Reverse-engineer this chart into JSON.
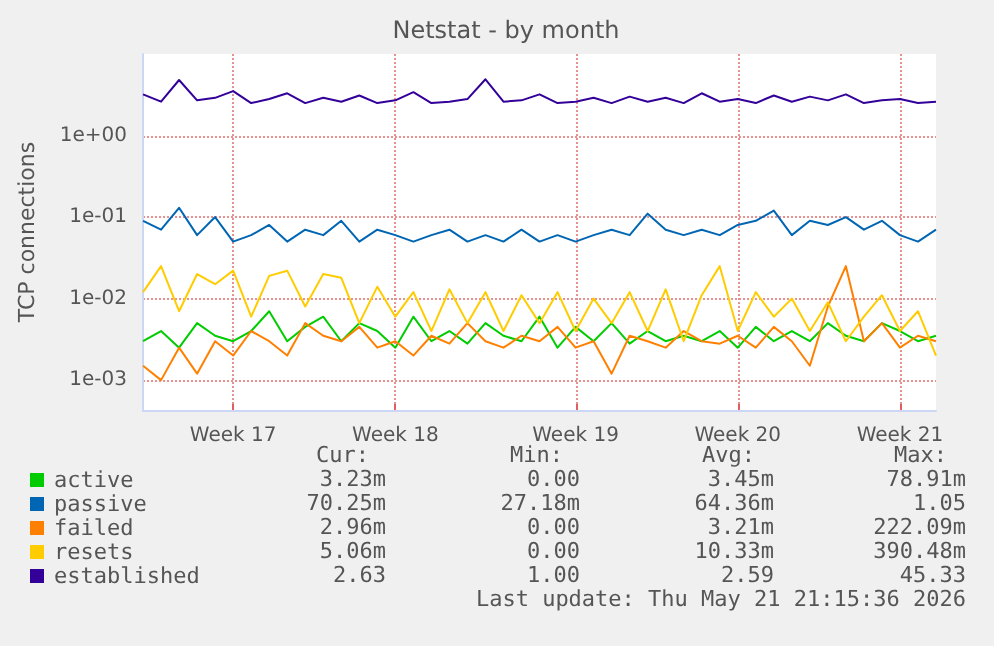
{
  "chart_data": {
    "type": "line",
    "title": "Netstat - by month",
    "ylabel": "TCP connections",
    "log": "y",
    "grid": true,
    "legend": "bottom left",
    "marker": "none",
    "line_style": "solid",
    "categories": [
      null,
      null,
      null,
      null,
      null,
      "Week 17",
      null,
      null,
      null,
      null,
      null,
      null,
      null,
      null,
      "Week 18",
      null,
      null,
      null,
      null,
      null,
      null,
      null,
      null,
      null,
      "Week 19",
      null,
      null,
      null,
      null,
      null,
      null,
      null,
      null,
      "Week 20",
      null,
      null,
      null,
      null,
      null,
      null,
      null,
      null,
      "Week 21",
      null,
      null
    ],
    "ylim": [
      0.00043,
      10
    ],
    "yticks": [
      {
        "value": 0.001,
        "label": "1e-03"
      },
      {
        "value": 0.01,
        "label": "1e-02"
      },
      {
        "value": 0.1,
        "label": "1e-01"
      },
      {
        "value": 1,
        "label": "1e+00"
      }
    ],
    "series": [
      {
        "name": "active",
        "color": "#00cc00",
        "values": [
          0.003,
          0.004,
          0.0025,
          0.005,
          0.0035,
          0.003,
          0.004,
          0.007,
          0.003,
          0.0045,
          0.006,
          0.003,
          0.005,
          0.004,
          0.0025,
          0.006,
          0.003,
          0.004,
          0.0028,
          0.005,
          0.0035,
          0.003,
          0.006,
          0.0025,
          0.0045,
          0.003,
          0.005,
          0.0028,
          0.004,
          0.003,
          0.0035,
          0.003,
          0.004,
          0.0025,
          0.0045,
          0.003,
          0.004,
          0.003,
          0.005,
          0.0035,
          0.003,
          0.005,
          0.004,
          0.003,
          0.0035
        ]
      },
      {
        "name": "passive",
        "color": "#0066b3",
        "values": [
          0.09,
          0.07,
          0.13,
          0.06,
          0.1,
          0.05,
          0.06,
          0.08,
          0.05,
          0.07,
          0.06,
          0.09,
          0.05,
          0.07,
          0.06,
          0.05,
          0.06,
          0.07,
          0.05,
          0.06,
          0.05,
          0.07,
          0.05,
          0.06,
          0.05,
          0.06,
          0.07,
          0.06,
          0.11,
          0.07,
          0.06,
          0.07,
          0.06,
          0.08,
          0.09,
          0.12,
          0.06,
          0.09,
          0.08,
          0.1,
          0.07,
          0.09,
          0.06,
          0.05,
          0.07
        ]
      },
      {
        "name": "failed",
        "color": "#ff8000",
        "values": [
          0.0015,
          0.001,
          0.0025,
          0.0012,
          0.003,
          0.002,
          0.004,
          0.003,
          0.002,
          0.005,
          0.0035,
          0.003,
          0.0045,
          0.0025,
          0.003,
          0.002,
          0.0035,
          0.0028,
          0.005,
          0.003,
          0.0025,
          0.0035,
          0.003,
          0.0045,
          0.0025,
          0.003,
          0.0012,
          0.0035,
          0.003,
          0.0025,
          0.004,
          0.003,
          0.0028,
          0.0035,
          0.0025,
          0.0045,
          0.003,
          0.0015,
          0.008,
          0.025,
          0.003,
          0.005,
          0.0025,
          0.0035,
          0.003
        ]
      },
      {
        "name": "resets",
        "color": "#ffcc00",
        "values": [
          0.012,
          0.025,
          0.007,
          0.02,
          0.015,
          0.022,
          0.006,
          0.019,
          0.022,
          0.008,
          0.02,
          0.018,
          0.005,
          0.014,
          0.006,
          0.012,
          0.004,
          0.013,
          0.005,
          0.012,
          0.004,
          0.011,
          0.005,
          0.012,
          0.004,
          0.01,
          0.005,
          0.012,
          0.004,
          0.013,
          0.003,
          0.011,
          0.025,
          0.004,
          0.012,
          0.006,
          0.01,
          0.004,
          0.009,
          0.003,
          0.006,
          0.011,
          0.004,
          0.007,
          0.002
        ]
      },
      {
        "name": "established",
        "color": "#330099",
        "values": [
          3.2,
          2.6,
          4.8,
          2.7,
          2.9,
          3.5,
          2.5,
          2.8,
          3.3,
          2.5,
          2.9,
          2.6,
          3.1,
          2.5,
          2.7,
          3.4,
          2.5,
          2.6,
          2.8,
          4.9,
          2.6,
          2.7,
          3.2,
          2.5,
          2.6,
          2.9,
          2.5,
          3.0,
          2.6,
          2.9,
          2.5,
          3.3,
          2.6,
          2.8,
          2.5,
          3.1,
          2.6,
          3.0,
          2.7,
          3.2,
          2.5,
          2.7,
          2.8,
          2.5,
          2.6
        ]
      }
    ],
    "annotations": [
      "Cur:",
      "Min:",
      "Avg:",
      "Max:",
      "3.23m",
      "0.00",
      "3.45m",
      "78.91m",
      "70.25m",
      "27.18m",
      "64.36m",
      "1.05",
      "2.96m",
      "0.00",
      "3.21m",
      "222.09m",
      "5.06m",
      "0.00",
      "10.33m",
      "390.48m",
      "2.63",
      "1.00",
      "2.59",
      "45.33",
      "Last update: Thu May 21 21:15:36 2026"
    ]
  }
}
